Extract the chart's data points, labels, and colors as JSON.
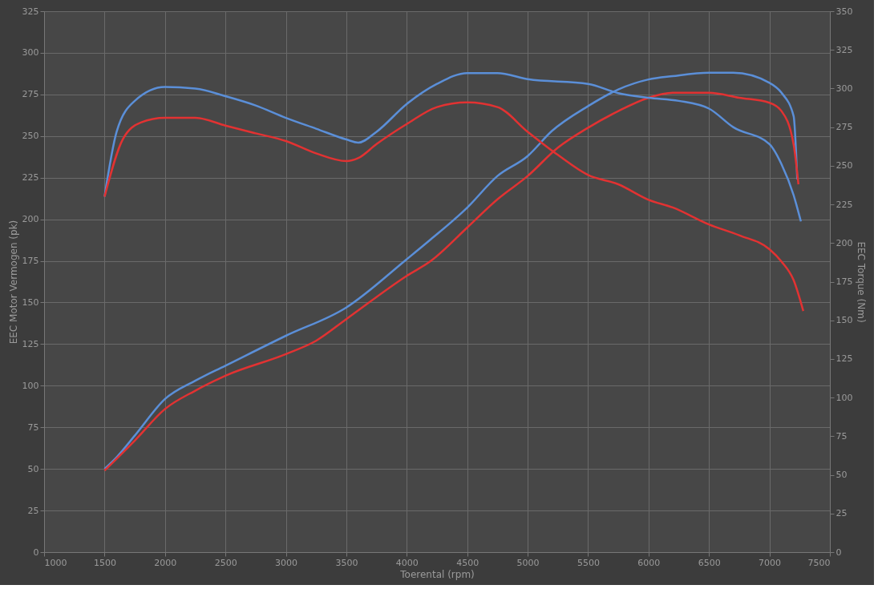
{
  "chart_data": {
    "type": "line",
    "xlabel": "Toerental (rpm)",
    "ylabel": "EEC Motor Vermogen (pk)",
    "y2label": "EEC Torque (Nm)",
    "xlim": [
      1000,
      7500
    ],
    "xticks": [
      1000,
      1500,
      2000,
      2500,
      3000,
      3500,
      4000,
      4500,
      5000,
      5500,
      6000,
      6500,
      7000,
      7500
    ],
    "ylim": [
      0,
      325
    ],
    "yticks": [
      0,
      25,
      50,
      75,
      100,
      125,
      150,
      175,
      200,
      225,
      250,
      275,
      300,
      325
    ],
    "y2lim": [
      0,
      350
    ],
    "y2ticks": [
      0,
      25,
      50,
      75,
      100,
      125,
      150,
      175,
      200,
      225,
      250,
      275,
      300,
      325,
      350
    ],
    "grid": true,
    "marker": "none",
    "line_style": "solid",
    "series": [
      {
        "color": "#5b8fd8",
        "x": [
          1500,
          1600,
          1750,
          2000,
          2250,
          2500,
          3000,
          3500,
          4000,
          4200,
          4500,
          4750,
          5000,
          5200,
          5500,
          5750,
          6000,
          6200,
          6500,
          6700,
          7000,
          7100,
          7200,
          7230
        ],
        "values": [
          50,
          57,
          70,
          92,
          103,
          112,
          130,
          147,
          176,
          188,
          207,
          226,
          238,
          253,
          268,
          278,
          284,
          286,
          288,
          288,
          282,
          276,
          262,
          224
        ]
      },
      {
        "color": "#e23232",
        "x": [
          1500,
          1750,
          2000,
          2250,
          2500,
          3000,
          3250,
          3500,
          4000,
          4200,
          4500,
          4750,
          5000,
          5250,
          5500,
          5750,
          6000,
          6200,
          6500,
          6750,
          7000,
          7100,
          7200,
          7240
        ],
        "values": [
          49,
          67,
          86,
          97,
          106,
          119,
          127,
          140,
          166,
          175,
          195,
          212,
          226,
          243,
          255,
          265,
          273,
          276,
          276,
          273,
          270,
          265,
          245,
          221
        ]
      },
      {
        "color": "#5b8fd8",
        "axis": "y2",
        "x": [
          1500,
          1600,
          1750,
          2000,
          2250,
          2500,
          2750,
          3000,
          3250,
          3500,
          3600,
          3750,
          4000,
          4250,
          4500,
          4750,
          5000,
          5500,
          5750,
          6000,
          6250,
          6500,
          6700,
          7000,
          7100,
          7200,
          7260
        ],
        "values": [
          230,
          272,
          292,
          301,
          300,
          295,
          289,
          281,
          274,
          267,
          265,
          272,
          290,
          303,
          310,
          310,
          306,
          303,
          297,
          294,
          292,
          287,
          275,
          264,
          251,
          231,
          214
        ]
      },
      {
        "color": "#e23232",
        "axis": "y2",
        "x": [
          1500,
          1650,
          1800,
          2000,
          2250,
          2500,
          2750,
          3000,
          3250,
          3500,
          3600,
          3750,
          4000,
          4250,
          4500,
          4750,
          5000,
          5250,
          5500,
          5750,
          6000,
          6200,
          6500,
          6750,
          7000,
          7100,
          7200,
          7280
        ],
        "values": [
          230,
          267,
          278,
          281,
          281,
          276,
          271,
          266,
          258,
          253,
          255,
          264,
          277,
          288,
          291,
          288,
          272,
          257,
          244,
          238,
          228,
          223,
          212,
          205,
          196,
          188,
          176,
          156
        ]
      }
    ]
  }
}
